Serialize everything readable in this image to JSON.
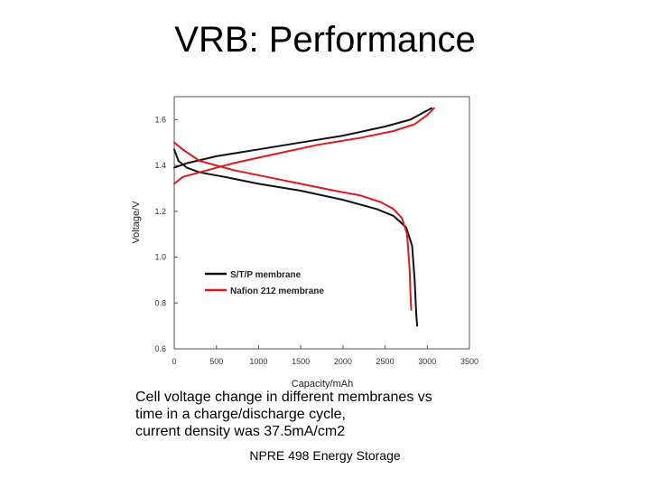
{
  "slide": {
    "title": "VRB: Performance",
    "caption_lines": [
      "Cell voltage change in different membranes vs",
      "time in a charge/discharge cycle,",
      "current density was 37.5mA/cm2"
    ],
    "footer": "NPRE 498 Energy Storage"
  },
  "chart_data": {
    "type": "line",
    "title": "",
    "xlabel": "Capacity/mAh",
    "ylabel": "Voltage/V",
    "xlim": [
      0,
      3500
    ],
    "ylim": [
      0.6,
      1.7
    ],
    "x_ticks": [
      "0",
      "500",
      "1000",
      "1500",
      "2000",
      "2500",
      "3000",
      "3500"
    ],
    "y_ticks": [
      "0.6",
      "0.8",
      "1.0",
      "1.2",
      "1.4",
      "1.6"
    ],
    "grid": false,
    "legend_position": "center-left",
    "series": [
      {
        "name": "S/T/P membrane",
        "color": "#111111",
        "segments": [
          {
            "x": [
              0,
              150,
              500,
              1000,
              1500,
              2000,
              2500,
              2800,
              2950,
              3050
            ],
            "y": [
              1.39,
              1.41,
              1.44,
              1.47,
              1.5,
              1.53,
              1.57,
              1.6,
              1.63,
              1.65
            ]
          },
          {
            "x": [
              0,
              50,
              150,
              300,
              600,
              1000,
              1500,
              2000,
              2400,
              2600,
              2750,
              2820,
              2850,
              2870,
              2880
            ],
            "y": [
              1.47,
              1.42,
              1.39,
              1.37,
              1.35,
              1.32,
              1.29,
              1.25,
              1.21,
              1.18,
              1.13,
              1.05,
              0.9,
              0.75,
              0.7
            ]
          }
        ]
      },
      {
        "name": "Nafion 212 membrane",
        "color": "#e0191b",
        "segments": [
          {
            "x": [
              0,
              100,
              300,
              700,
              1200,
              1700,
              2200,
              2600,
              2850,
              3000,
              3080
            ],
            "y": [
              1.32,
              1.35,
              1.37,
              1.41,
              1.45,
              1.49,
              1.52,
              1.55,
              1.58,
              1.62,
              1.65
            ]
          },
          {
            "x": [
              0,
              100,
              300,
              700,
              1100,
              1500,
              1900,
              2200,
              2450,
              2600,
              2700,
              2760,
              2790,
              2800,
              2810
            ],
            "y": [
              1.5,
              1.47,
              1.42,
              1.38,
              1.35,
              1.32,
              1.29,
              1.27,
              1.24,
              1.21,
              1.17,
              1.1,
              0.95,
              0.85,
              0.77
            ]
          }
        ]
      }
    ]
  }
}
